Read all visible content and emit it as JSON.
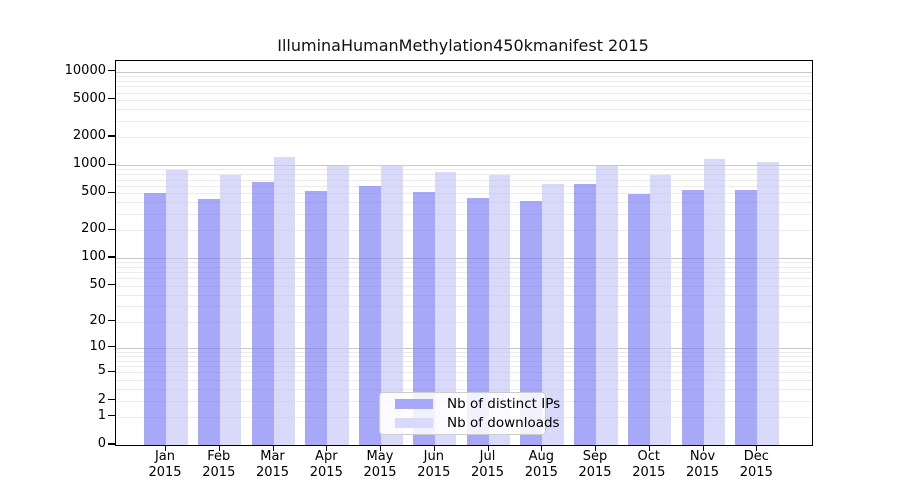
{
  "chart_data": {
    "type": "bar",
    "title": "IlluminaHumanMethylation450kmanifest 2015",
    "categories": [
      "Jan 2015",
      "Feb 2015",
      "Mar 2015",
      "Apr 2015",
      "May 2015",
      "Jun 2015",
      "Jul 2015",
      "Aug 2015",
      "Sep 2015",
      "Oct 2015",
      "Nov 2015",
      "Dec 2015"
    ],
    "series": [
      {
        "name": "Nb of distinct IPs",
        "color": "#a8a8f8",
        "fill_rgba": "rgba(121,121,244,0.65)",
        "values": [
          500,
          430,
          660,
          525,
          600,
          520,
          440,
          410,
          620,
          485,
          535,
          535
        ]
      },
      {
        "name": "Nb of downloads",
        "color": "#d9d9fa",
        "fill_rgba": "rgba(196,196,247,0.65)",
        "values": [
          890,
          775,
          1230,
          985,
          1010,
          850,
          790,
          620,
          975,
          780,
          1150,
          1080
        ]
      }
    ],
    "y_ticks": [
      0,
      1,
      2,
      5,
      10,
      20,
      50,
      100,
      200,
      500,
      1000,
      2000,
      5000,
      10000
    ],
    "y_scale": "log1p",
    "ylim": [
      0,
      13000
    ],
    "xlabel": "",
    "ylabel": "",
    "grid": true,
    "legend_position": "inside-bottom-center"
  },
  "colors": {
    "grid_minor": "#ebebeb",
    "grid_major": "#c9c9c9",
    "axis": "#000000",
    "text": "#000000"
  }
}
